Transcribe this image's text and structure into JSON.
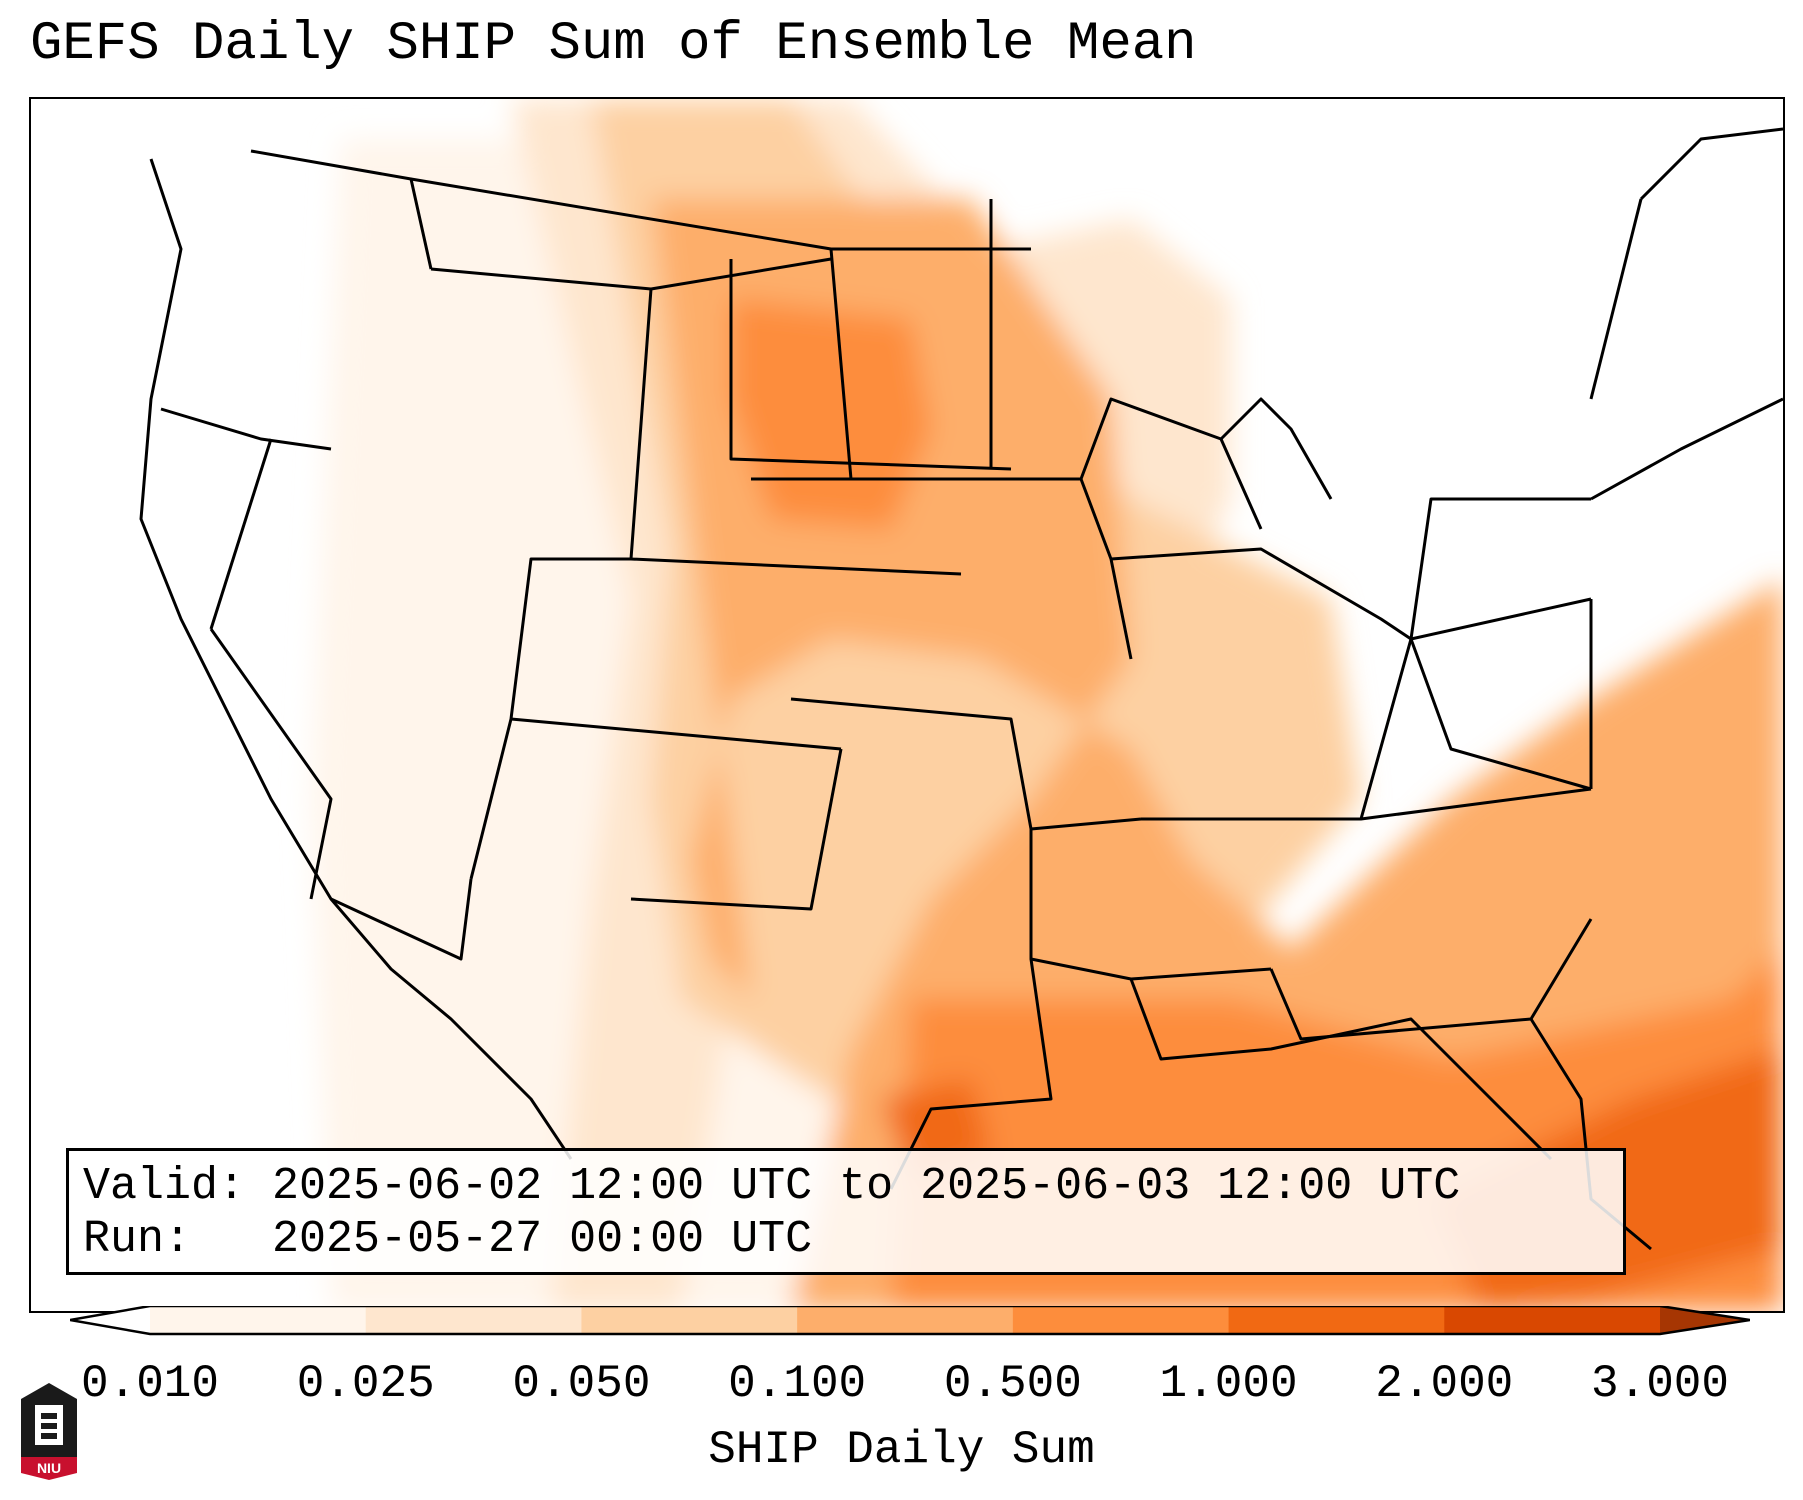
{
  "title": "GEFS Daily SHIP Sum of Ensemble Mean",
  "info": {
    "valid_label": "Valid:",
    "valid_value": "2025-06-02 12:00 UTC to 2025-06-03 12:00 UTC",
    "run_label": "Run:",
    "run_value": "2025-05-27 00:00 UTC"
  },
  "colorbar": {
    "label": "SHIP Daily Sum",
    "ticks": [
      "0.010",
      "0.025",
      "0.050",
      "0.100",
      "0.500",
      "1.000",
      "2.000",
      "3.000"
    ],
    "colors": [
      "#fff5eb",
      "#fee6ce",
      "#fdd0a2",
      "#fdae6b",
      "#fd8d3c",
      "#f16913",
      "#d94801",
      "#a63603"
    ]
  },
  "logo": {
    "text": "NIU"
  }
}
